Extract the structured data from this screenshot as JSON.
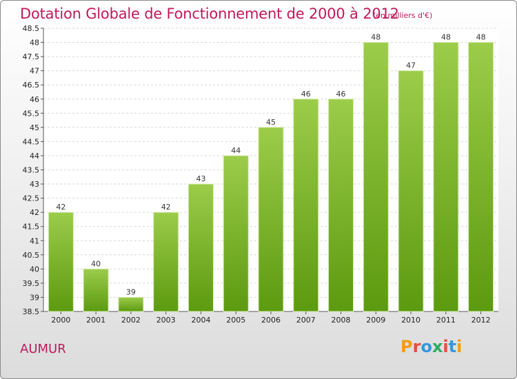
{
  "header": {
    "title": "Dotation Globale de Fonctionnement de 2000 à 2012",
    "subtitle": "(en milliers d'€)"
  },
  "footer": {
    "commune": "AUMUR",
    "logo_text": "Proxiti"
  },
  "colors": {
    "title": "#c2185b",
    "bar_top": "#9ccc4a",
    "bar_bottom": "#5c9a10",
    "logo_letters": [
      "#f39c12",
      "#e74c3c",
      "#3498db",
      "#27ae60",
      "#e74c3c",
      "#3498db",
      "#f39c12"
    ]
  },
  "chart_data": {
    "type": "bar",
    "title": "Dotation Globale de Fonctionnement de 2000 à 2012",
    "subtitle": "(en milliers d'€)",
    "categories": [
      "2000",
      "2001",
      "2002",
      "2003",
      "2004",
      "2005",
      "2006",
      "2007",
      "2008",
      "2009",
      "2010",
      "2011",
      "2012"
    ],
    "values": [
      42,
      40,
      39,
      42,
      43,
      44,
      45,
      46,
      46,
      48,
      47,
      48,
      48
    ],
    "data_labels": [
      "42",
      "40",
      "39",
      "42",
      "43",
      "44",
      "45",
      "46",
      "46",
      "48",
      "47",
      "48",
      "48"
    ],
    "ylim": [
      38.5,
      48.5
    ],
    "yticks": [
      "38.5",
      "39",
      "39.5",
      "40",
      "40.5",
      "41",
      "41.5",
      "42",
      "42.5",
      "43",
      "43.5",
      "44",
      "44.5",
      "45",
      "45.5",
      "46",
      "46.5",
      "47",
      "47.5",
      "48",
      "48.5"
    ],
    "grid": true,
    "xlabel": "",
    "ylabel": ""
  }
}
